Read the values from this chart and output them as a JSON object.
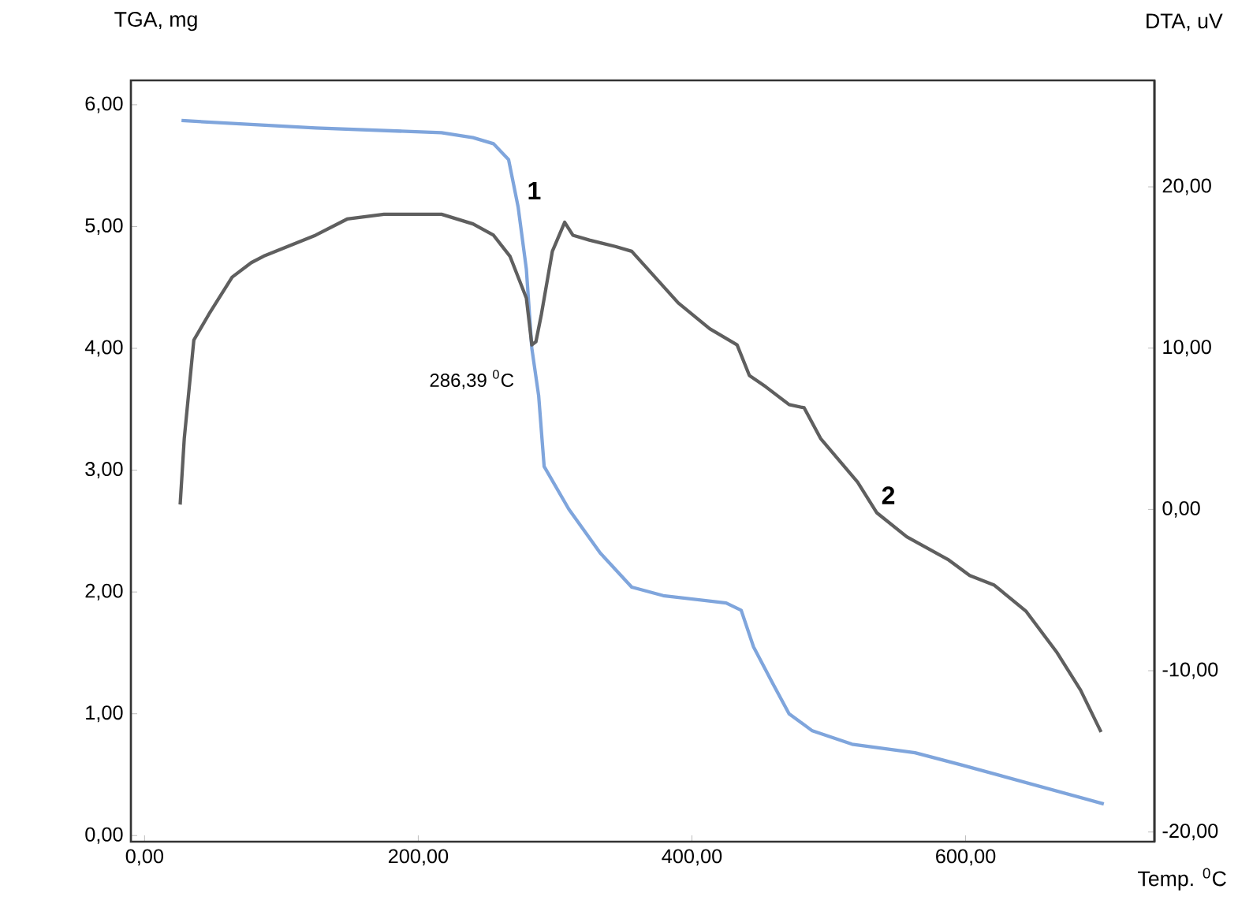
{
  "chart_data": {
    "type": "line",
    "xlabel": "Temp. $^{0}$C",
    "ylabel": "TGA, mg",
    "y2label": "DTA, uV",
    "xlim": [
      -10,
      738
    ],
    "ylim": [
      -0.05,
      6.2
    ],
    "y2lim": [
      -20.6,
      26.6
    ],
    "xticks": [
      {
        "value": 0,
        "label": "0,00"
      },
      {
        "value": 200,
        "label": "200,00"
      },
      {
        "value": 400,
        "label": "400,00"
      },
      {
        "value": 600,
        "label": "600,00"
      }
    ],
    "yticks": [
      {
        "value": 0,
        "label": "0,00"
      },
      {
        "value": 1,
        "label": "1,00"
      },
      {
        "value": 2,
        "label": "2,00"
      },
      {
        "value": 3,
        "label": "3,00"
      },
      {
        "value": 4,
        "label": "4,00"
      },
      {
        "value": 5,
        "label": "5,00"
      },
      {
        "value": 6,
        "label": "6,00"
      }
    ],
    "y2ticks": [
      {
        "value": -20,
        "label": "-20,00"
      },
      {
        "value": -10,
        "label": "-10,00"
      },
      {
        "value": 0,
        "label": "0,00"
      },
      {
        "value": 10,
        "label": "10,00"
      },
      {
        "value": 20,
        "label": "20,00"
      }
    ],
    "grid": false,
    "series": [
      {
        "color": "#7fa5dc",
        "axis": "y",
        "x": [
          27,
          125,
          217,
          240,
          255,
          266,
          273,
          279,
          283,
          288,
          292,
          310,
          333,
          356,
          379,
          425,
          436,
          445,
          459,
          471,
          488,
          517,
          563,
          597,
          701
        ],
        "values": [
          5.87,
          5.81,
          5.77,
          5.73,
          5.68,
          5.55,
          5.16,
          4.65,
          4.0,
          3.61,
          3.03,
          2.68,
          2.32,
          2.04,
          1.97,
          1.91,
          1.85,
          1.55,
          1.25,
          1.0,
          0.86,
          0.75,
          0.68,
          0.58,
          0.26
        ]
      },
      {
        "color": "#5f5f5f",
        "axis": "y2",
        "x": [
          26,
          29,
          36,
          47,
          64,
          78,
          87,
          125,
          148,
          175,
          206,
          217,
          240,
          255,
          267,
          279,
          283,
          286,
          290,
          298,
          307,
          313,
          325,
          344,
          356,
          390,
          413,
          433,
          442,
          454,
          471,
          482,
          494,
          521,
          535,
          557,
          587,
          603,
          621,
          644,
          667,
          684,
          699
        ],
        "values": [
          0.3,
          4.4,
          10.5,
          12.1,
          14.4,
          15.3,
          15.7,
          17.0,
          18.0,
          18.3,
          18.3,
          18.3,
          17.7,
          17.0,
          15.7,
          13.1,
          10.2,
          10.4,
          12.1,
          16.0,
          17.8,
          17.0,
          16.7,
          16.3,
          16.0,
          12.8,
          11.2,
          10.2,
          8.3,
          7.6,
          6.5,
          6.3,
          4.4,
          1.7,
          -0.2,
          -1.7,
          -3.1,
          -4.1,
          -4.7,
          -6.3,
          -8.9,
          -11.2,
          -13.8
        ]
      }
    ],
    "annotations": [
      "1",
      "2",
      "286,39 $^{0}$C"
    ]
  }
}
